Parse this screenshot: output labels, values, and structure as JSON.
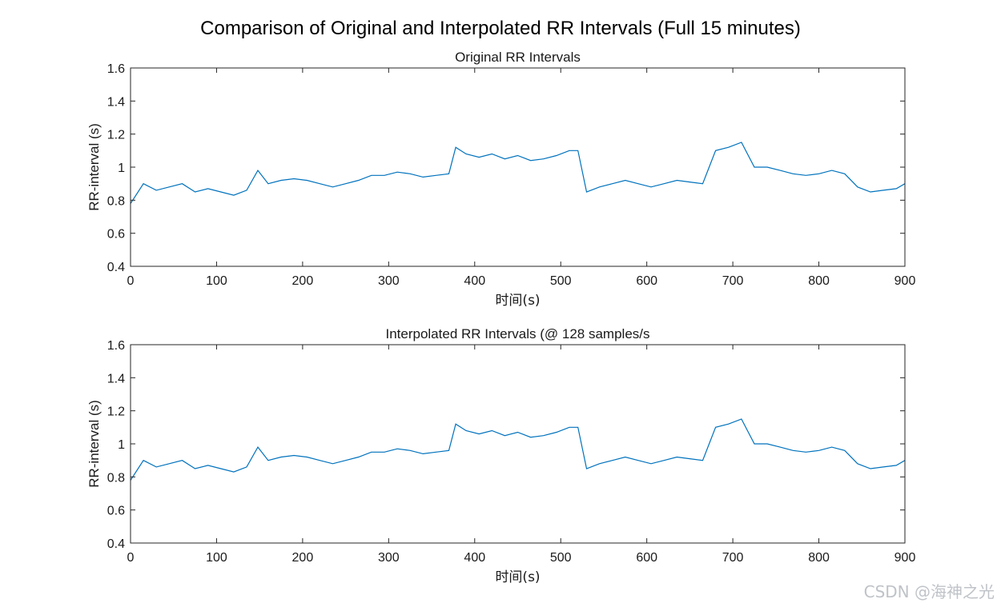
{
  "figure": {
    "suptitle": "Comparison of Original and Interpolated RR Intervals (Full 15 minutes)",
    "watermark": "CSDN @海神之光"
  },
  "colors": {
    "line": "#0072BD",
    "axes": "#262626",
    "text": "#1a1a1a"
  },
  "chart_data": [
    {
      "type": "line",
      "title": "Original RR Intervals",
      "xlabel": "时间(s)",
      "ylabel": "RR-interval (s)",
      "xlim": [
        0,
        900
      ],
      "ylim": [
        0.4,
        1.6
      ],
      "xticks": [
        0,
        100,
        200,
        300,
        400,
        500,
        600,
        700,
        800,
        900
      ],
      "xtick_labels": [
        "0",
        "100",
        "200",
        "300",
        "400",
        "500",
        "600",
        "700",
        "800",
        "900"
      ],
      "yticks": [
        0.4,
        0.6,
        0.8,
        1.0,
        1.2,
        1.4,
        1.6
      ],
      "ytick_labels": [
        "0.4",
        "0.6",
        "0.8",
        "1",
        "1.2",
        "1.4",
        "1.6"
      ],
      "grid": false,
      "series": [
        {
          "x": [
            0,
            15,
            30,
            45,
            60,
            75,
            90,
            105,
            120,
            135,
            148,
            160,
            175,
            190,
            205,
            220,
            235,
            250,
            265,
            280,
            295,
            310,
            325,
            340,
            355,
            370,
            378,
            390,
            405,
            420,
            435,
            450,
            465,
            480,
            495,
            510,
            520,
            530,
            545,
            560,
            575,
            590,
            605,
            620,
            635,
            650,
            665,
            680,
            695,
            710,
            725,
            740,
            755,
            770,
            785,
            800,
            815,
            830,
            845,
            860,
            875,
            890,
            900
          ],
          "y": [
            0.78,
            0.9,
            0.86,
            0.88,
            0.9,
            0.85,
            0.87,
            0.85,
            0.83,
            0.86,
            0.98,
            0.9,
            0.92,
            0.93,
            0.92,
            0.9,
            0.88,
            0.9,
            0.92,
            0.95,
            0.95,
            0.97,
            0.96,
            0.94,
            0.95,
            0.96,
            1.12,
            1.08,
            1.06,
            1.08,
            1.05,
            1.07,
            1.04,
            1.05,
            1.07,
            1.1,
            1.1,
            0.85,
            0.88,
            0.9,
            0.92,
            0.9,
            0.88,
            0.9,
            0.92,
            0.91,
            0.9,
            1.1,
            1.12,
            1.15,
            1.0,
            1.0,
            0.98,
            0.96,
            0.95,
            0.96,
            0.98,
            0.96,
            0.88,
            0.85,
            0.86,
            0.87,
            0.9
          ]
        }
      ]
    },
    {
      "type": "line",
      "title": "Interpolated RR Intervals (@ 128 samples/s",
      "xlabel": "时间(s)",
      "ylabel": "RR-interval (s)",
      "xlim": [
        0,
        900
      ],
      "ylim": [
        0.4,
        1.6
      ],
      "xticks": [
        0,
        100,
        200,
        300,
        400,
        500,
        600,
        700,
        800,
        900
      ],
      "xtick_labels": [
        "0",
        "100",
        "200",
        "300",
        "400",
        "500",
        "600",
        "700",
        "800",
        "900"
      ],
      "yticks": [
        0.4,
        0.6,
        0.8,
        1.0,
        1.2,
        1.4,
        1.6
      ],
      "ytick_labels": [
        "0.4",
        "0.6",
        "0.8",
        "1",
        "1.2",
        "1.4",
        "1.6"
      ],
      "grid": false,
      "series": [
        {
          "x": [
            0,
            15,
            30,
            45,
            60,
            75,
            90,
            105,
            120,
            135,
            148,
            160,
            175,
            190,
            205,
            220,
            235,
            250,
            265,
            280,
            295,
            310,
            325,
            340,
            355,
            370,
            378,
            390,
            405,
            420,
            435,
            450,
            465,
            480,
            495,
            510,
            520,
            530,
            545,
            560,
            575,
            590,
            605,
            620,
            635,
            650,
            665,
            680,
            695,
            710,
            725,
            740,
            755,
            770,
            785,
            800,
            815,
            830,
            845,
            860,
            875,
            890,
            900
          ],
          "y": [
            0.78,
            0.9,
            0.86,
            0.88,
            0.9,
            0.85,
            0.87,
            0.85,
            0.83,
            0.86,
            0.98,
            0.9,
            0.92,
            0.93,
            0.92,
            0.9,
            0.88,
            0.9,
            0.92,
            0.95,
            0.95,
            0.97,
            0.96,
            0.94,
            0.95,
            0.96,
            1.12,
            1.08,
            1.06,
            1.08,
            1.05,
            1.07,
            1.04,
            1.05,
            1.07,
            1.1,
            1.1,
            0.85,
            0.88,
            0.9,
            0.92,
            0.9,
            0.88,
            0.9,
            0.92,
            0.91,
            0.9,
            1.1,
            1.12,
            1.15,
            1.0,
            1.0,
            0.98,
            0.96,
            0.95,
            0.96,
            0.98,
            0.96,
            0.88,
            0.85,
            0.86,
            0.87,
            0.9
          ]
        }
      ]
    }
  ]
}
